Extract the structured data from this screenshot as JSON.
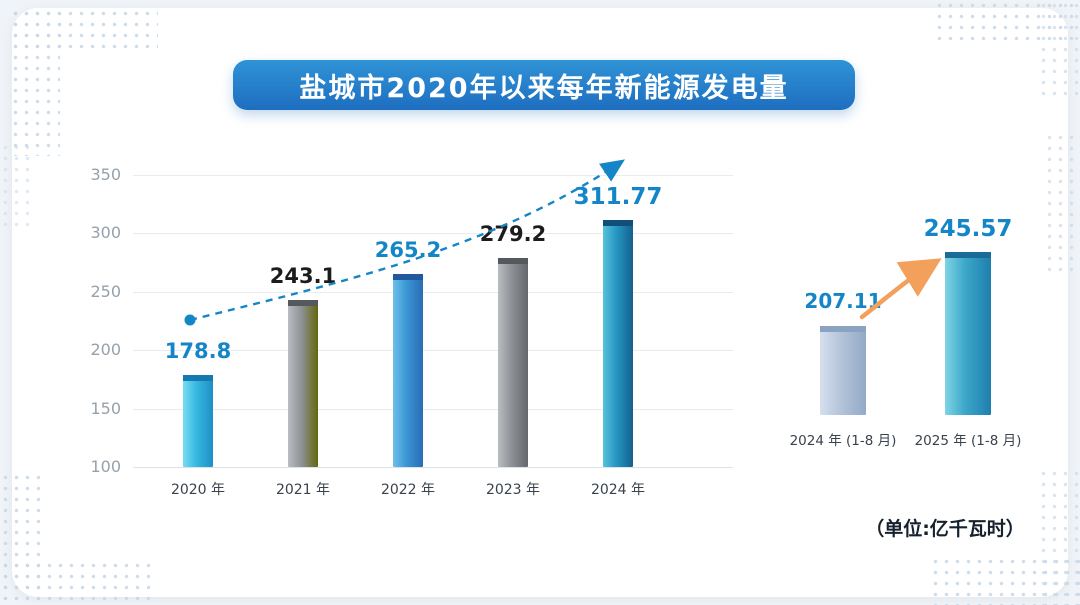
{
  "page": {
    "title_banner": "盐城市2020年以来每年新能源发电量",
    "unit_label": "（单位:亿千瓦时）"
  },
  "colors": {
    "banner_gradient_top": "#2f93d6",
    "banner_gradient_bottom": "#1e6ec0",
    "trend_line": "#1486c8",
    "growth_arrow": "#f2a05c",
    "axis_text": "#96a1ab",
    "gridline": "#e8ecf0",
    "value_blue": "#1486c8",
    "value_dark": "#1c1c1c"
  },
  "chart_data": [
    {
      "type": "bar",
      "title": "盐城市2020年以来每年新能源发电量",
      "categories": [
        "2020 年",
        "2021 年",
        "2022 年",
        "2023 年",
        "2024 年"
      ],
      "values": [
        178.8,
        243.1,
        265.2,
        279.2,
        311.77
      ],
      "value_labels": [
        "178.8",
        "243.1",
        "265.2",
        "279.2",
        "311.77"
      ],
      "xlabel": "",
      "ylabel": "",
      "ylim": [
        100,
        350
      ],
      "yticks": [
        350,
        300,
        250,
        200,
        150,
        100
      ],
      "grid": true,
      "legend": "none",
      "annotations": [
        "dashed blue upward trend arrow from 2020 bar to above 2024 bar"
      ],
      "bar_styles": [
        {
          "light": "#7adcf0",
          "mid": "#35b8e0",
          "dark": "#1e8fc6",
          "cap": "#1578b0",
          "label_color": "#1486c8",
          "label_size": 21
        },
        {
          "light": "#b9bdc1",
          "mid": "#8e9296",
          "dark": "#63670b",
          "cap": "#55585c",
          "label_color": "#1c1c1c",
          "label_size": 21
        },
        {
          "light": "#6ec0ea",
          "mid": "#3a96d4",
          "dark": "#2a6cb4",
          "cap": "#2258a0",
          "label_color": "#1486c8",
          "label_size": 21
        },
        {
          "light": "#b9bdc1",
          "mid": "#8e9296",
          "dark": "#64686c",
          "cap": "#55585c",
          "label_color": "#1c1c1c",
          "label_size": 21
        },
        {
          "light": "#58c2da",
          "mid": "#2596c2",
          "dark": "#15608e",
          "cap": "#124f78",
          "label_color": "#1486c8",
          "label_size": 23
        }
      ]
    },
    {
      "type": "bar",
      "title": "",
      "categories": [
        "2024 年 (1-8 月)",
        "2025 年 (1-8 月)"
      ],
      "values": [
        207.11,
        245.57
      ],
      "value_labels": [
        "207.11",
        "245.57"
      ],
      "xlabel": "",
      "ylabel": "",
      "grid": false,
      "legend": "none",
      "annotations": [
        "orange curved growth arrow between the two bars"
      ],
      "bar_styles": [
        {
          "light": "#d6dfee",
          "mid": "#b4c4da",
          "dark": "#93a9c6",
          "cap": "#8ba3c2",
          "label_color": "#1486c8",
          "label_size": 20
        },
        {
          "light": "#7fd4e4",
          "mid": "#3aa6c8",
          "dark": "#1f7fae",
          "cap": "#1a6c96",
          "label_color": "#1486c8",
          "label_size": 23
        }
      ]
    }
  ]
}
